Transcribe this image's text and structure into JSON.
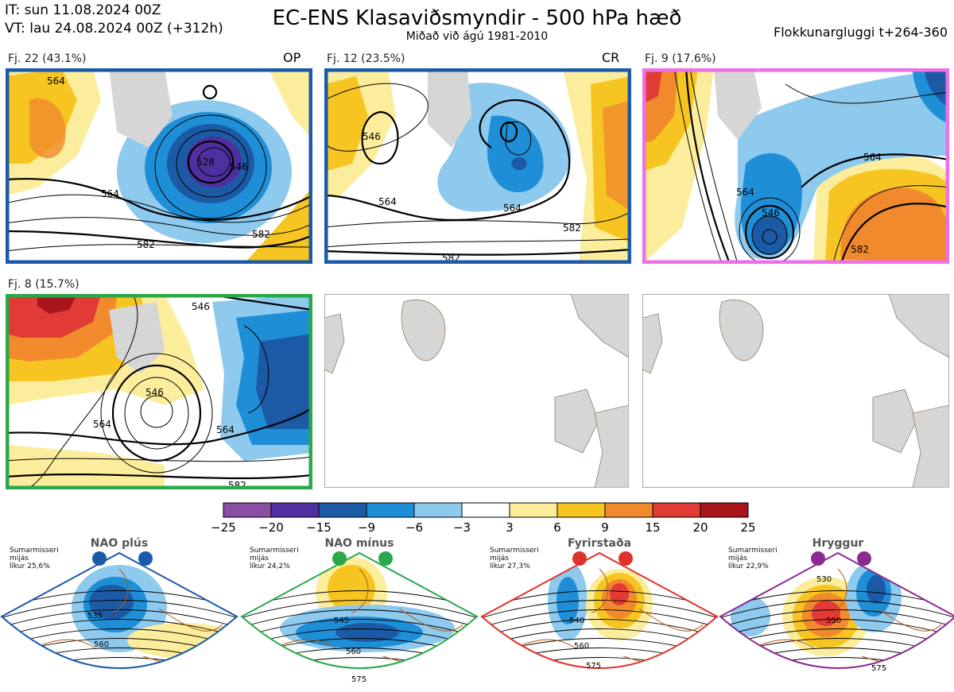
{
  "header": {
    "it": "IT: sun 11.08.2024 00Z",
    "vt": "VT: lau 24.08.2024 00Z  (+312h)",
    "title": "EC-ENS Klasaviðsmyndir - 500 hPa hæð",
    "subtitle": "Miðað við ágú 1981-2010",
    "window": "Flokkunargluggi t+264-360"
  },
  "panels": [
    {
      "label": "Fj. 22 (43.1%)",
      "tag": "OP",
      "border": "#1a5aa8",
      "contours": [
        "564",
        "582",
        "546",
        "528",
        "564",
        "582"
      ]
    },
    {
      "label": "Fj. 12 (23.5%)",
      "tag": "CR",
      "border": "#1a5aa8",
      "contours": [
        "546",
        "564",
        "564",
        "582",
        "582"
      ]
    },
    {
      "label": "Fj. 9 (17.6%)",
      "tag": "",
      "border": "#ee6fe6",
      "contours": [
        "564",
        "546",
        "564",
        "582"
      ]
    },
    {
      "label": "Fj. 8 (15.7%)",
      "tag": "",
      "border": "#2aa84a",
      "contours": [
        "546",
        "564",
        "564",
        "546",
        "582"
      ]
    }
  ],
  "colorbar": {
    "ticks": [
      "−25",
      "−20",
      "−15",
      "−9",
      "−6",
      "−3",
      "3",
      "6",
      "9",
      "15",
      "20",
      "25"
    ],
    "colors": [
      "#8a4ea2",
      "#4f2f9f",
      "#1c5aa6",
      "#1e8fd6",
      "#8ec9ee",
      "#ffffff",
      "#fbed9c",
      "#f6c521",
      "#f08a2d",
      "#e23a34",
      "#a8151c"
    ]
  },
  "regimes": [
    {
      "name": "NAO plús",
      "info": [
        "Sumarmisseri",
        "mijás",
        "líkur 25,6%"
      ],
      "color": "#1a5aa8",
      "contours": [
        "535",
        "560"
      ]
    },
    {
      "name": "NAO mínus",
      "info": [
        "Sumarmisseri",
        "mijás",
        "líkur 24,2%"
      ],
      "color": "#2aa84a",
      "contours": [
        "545",
        "560",
        "575"
      ]
    },
    {
      "name": "Fyrirstaða",
      "info": [
        "Sumarmisseri",
        "mijás",
        "líkur 27,3%"
      ],
      "color": "#e0322c",
      "contours": [
        "540",
        "560",
        "575"
      ]
    },
    {
      "name": "Hryggur",
      "info": [
        "Sumarmisseri",
        "mijás",
        "líkur 22,9%"
      ],
      "color": "#8b2a90",
      "contours": [
        "530",
        "550",
        "575"
      ]
    }
  ]
}
